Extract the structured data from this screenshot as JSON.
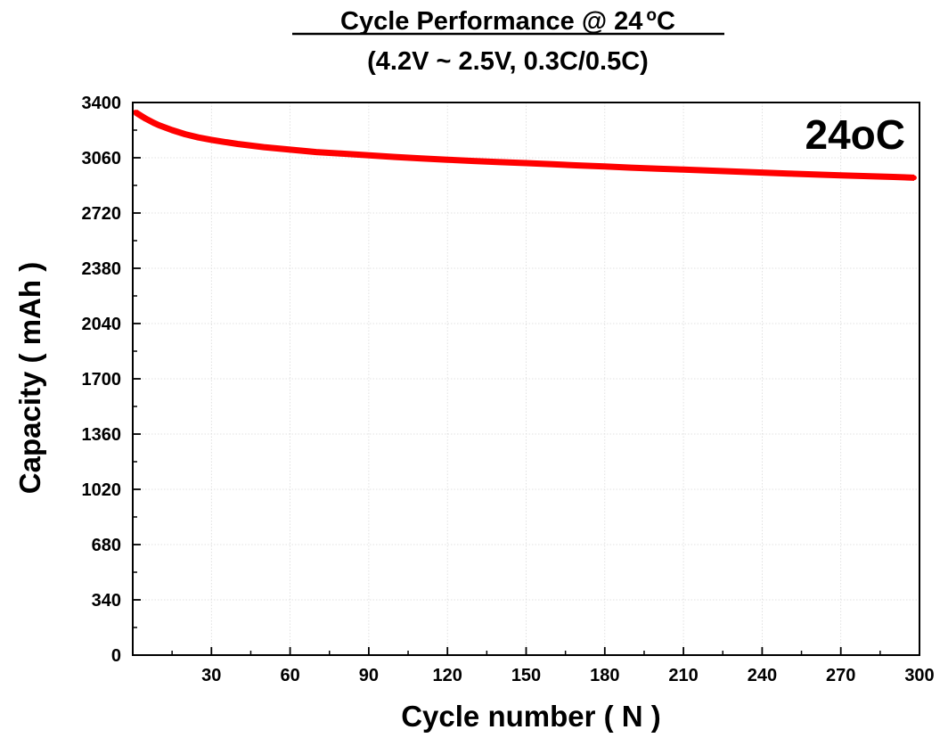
{
  "chart_data": {
    "type": "line",
    "title_main": "Cycle Performance @ 24",
    "title_degree": "o",
    "title_unit": "C",
    "subtitle": "(4.2V ~ 2.5V, 0.3C/0.5C)",
    "xlabel": "Cycle number ( N )",
    "ylabel": "Capacity ( mAh )",
    "annotation": "24oC",
    "xlim": [
      0,
      300
    ],
    "ylim": [
      0,
      3400
    ],
    "x_ticks": [
      30,
      60,
      90,
      120,
      150,
      180,
      210,
      240,
      270,
      300
    ],
    "y_ticks": [
      0,
      340,
      680,
      1020,
      1360,
      1700,
      2040,
      2380,
      2720,
      3060,
      3400
    ],
    "grid": true,
    "series": [
      {
        "color": "#ff0000",
        "x": [
          1,
          3,
          5,
          8,
          10,
          15,
          20,
          25,
          30,
          35,
          40,
          50,
          60,
          70,
          80,
          90,
          100,
          110,
          120,
          130,
          140,
          150,
          160,
          170,
          180,
          190,
          200,
          210,
          220,
          230,
          240,
          250,
          260,
          270,
          280,
          290,
          298
        ],
        "values": [
          3340,
          3320,
          3300,
          3275,
          3260,
          3230,
          3205,
          3185,
          3170,
          3157,
          3145,
          3125,
          3110,
          3095,
          3085,
          3075,
          3065,
          3056,
          3048,
          3040,
          3033,
          3027,
          3020,
          3013,
          3006,
          2999,
          2993,
          2987,
          2981,
          2975,
          2969,
          2963,
          2957,
          2952,
          2947,
          2942,
          2937
        ]
      }
    ]
  }
}
